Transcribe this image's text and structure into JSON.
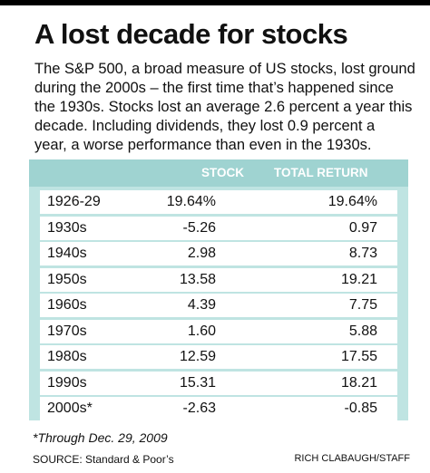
{
  "header": {
    "title": "A lost decade for stocks",
    "description_lines": [
      "The S&P 500, a broad measure of US stocks, lost ground",
      "during the 2000s – the first time that’s happened since",
      "the 1930s. Stocks lost an average 2.6 percent a year this",
      "decade. Including dividends, they lost 0.9 percent a",
      "year, a worse performance than even in the 1930s."
    ]
  },
  "chart_data": {
    "type": "table",
    "columns": [
      "STOCK",
      "TOTAL RETURN"
    ],
    "rows": [
      {
        "period": "1926-29",
        "stock": "19.64%",
        "total_return": "19.64%"
      },
      {
        "period": "1930s",
        "stock": "-5.26",
        "total_return": "0.97"
      },
      {
        "period": "1940s",
        "stock": "2.98",
        "total_return": "8.73"
      },
      {
        "period": "1950s",
        "stock": "13.58",
        "total_return": "19.21"
      },
      {
        "period": "1960s",
        "stock": "4.39",
        "total_return": "7.75"
      },
      {
        "period": "1970s",
        "stock": "1.60",
        "total_return": "5.88"
      },
      {
        "period": "1980s",
        "stock": "12.59",
        "total_return": "17.55"
      },
      {
        "period": "1990s",
        "stock": "15.31",
        "total_return": "18.21"
      },
      {
        "period": "2000s*",
        "stock": "-2.63",
        "total_return": "-0.85"
      }
    ]
  },
  "colors": {
    "header_band": "#9fd3d1",
    "table_background": "#bfe4e2",
    "row_background": "#ffffff"
  },
  "footer": {
    "footnote": "*Through Dec. 29, 2009",
    "source": "SOURCE: Standard & Poor’s",
    "credit": "RICH CLABAUGH/STAFF"
  }
}
